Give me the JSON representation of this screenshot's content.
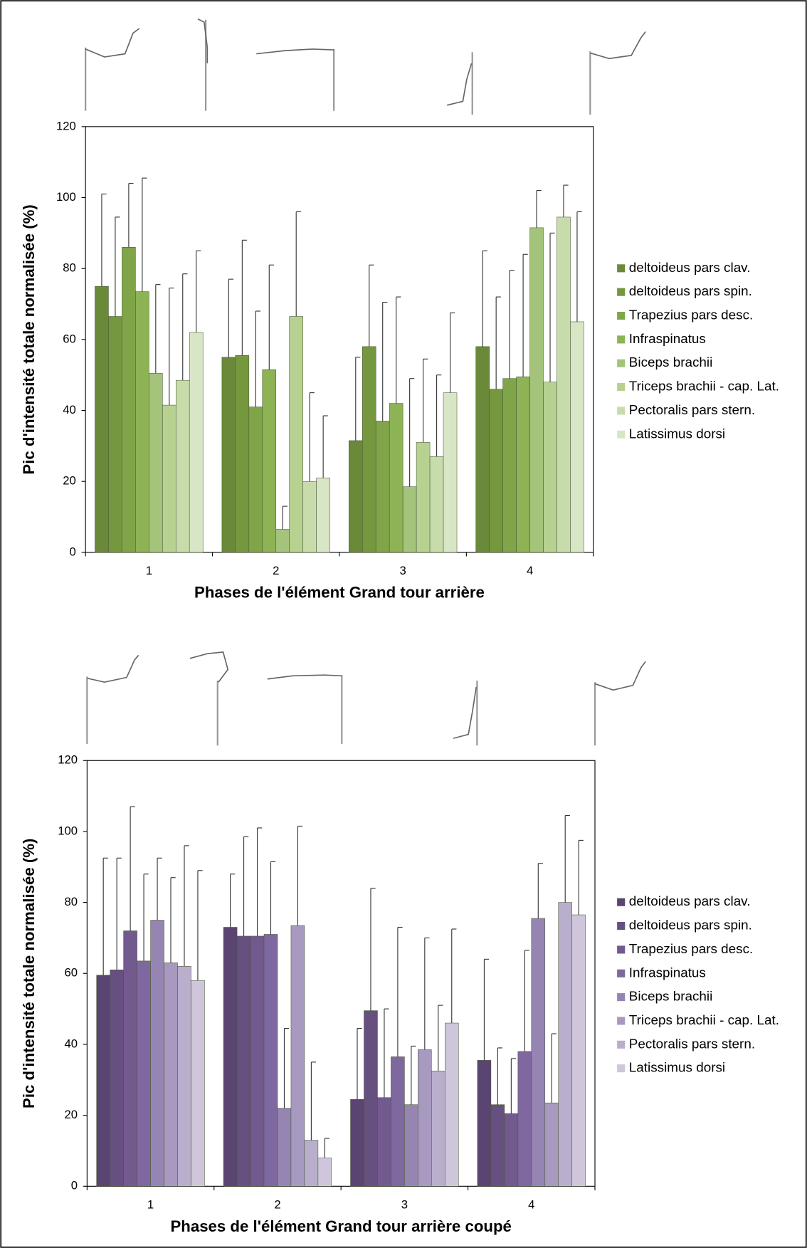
{
  "chart_data": [
    {
      "type": "bar",
      "x_label": "Phases de l'élément Grand tour arrière",
      "y_label": "Pic d'intensité totale normalisée (%)",
      "categories": [
        "1",
        "2",
        "3",
        "4"
      ],
      "ylim": [
        0,
        120
      ],
      "yticks": [
        0,
        20,
        40,
        60,
        80,
        100,
        120
      ],
      "series": [
        {
          "name": "deltoideus pars clav.",
          "color": "#6a8a3a",
          "values": [
            75,
            55,
            31.5,
            58
          ],
          "errors": [
            26,
            22,
            23.5,
            27
          ]
        },
        {
          "name": "deltoideus pars spin.",
          "color": "#75983f",
          "values": [
            66.5,
            55.5,
            58,
            46
          ],
          "errors": [
            28,
            32.5,
            23,
            26
          ]
        },
        {
          "name": "Trapezius pars  desc.",
          "color": "#80a548",
          "values": [
            86,
            41,
            37,
            49
          ],
          "errors": [
            18,
            27,
            33.5,
            30.5
          ]
        },
        {
          "name": "Infraspinatus",
          "color": "#8db354",
          "values": [
            73.5,
            51.5,
            42,
            49.5
          ],
          "errors": [
            32,
            29.5,
            30,
            34.5
          ]
        },
        {
          "name": "Biceps brachii",
          "color": "#a3c47a",
          "values": [
            50.5,
            6.5,
            18.5,
            91.5
          ],
          "errors": [
            25,
            6.5,
            30.5,
            10.5
          ]
        },
        {
          "name": "Triceps brachii - cap. Lat.",
          "color": "#b6d190",
          "values": [
            41.5,
            66.5,
            31,
            48
          ],
          "errors": [
            33,
            29.5,
            23.5,
            42
          ]
        },
        {
          "name": "Pectoralis pars stern.",
          "color": "#c8dcab",
          "values": [
            48.5,
            20,
            27,
            94.5
          ],
          "errors": [
            30,
            25,
            23,
            9
          ]
        },
        {
          "name": "Latissimus dorsi",
          "color": "#d9e6c6",
          "values": [
            62,
            21,
            45,
            65
          ],
          "errors": [
            23,
            17.5,
            22.5,
            31
          ]
        }
      ]
    },
    {
      "type": "bar",
      "x_label": "Phases de l'élément Grand tour arrière coupé",
      "y_label": "Pic d'intensité totale normalisée (%)",
      "categories": [
        "1",
        "2",
        "3",
        "4"
      ],
      "ylim": [
        0,
        120
      ],
      "yticks": [
        0,
        20,
        40,
        60,
        80,
        100,
        120
      ],
      "series": [
        {
          "name": "deltoideus pars clav.",
          "color": "#5a4472",
          "values": [
            59.5,
            73,
            24.5,
            35.5
          ],
          "errors": [
            33,
            15,
            20,
            28.5
          ]
        },
        {
          "name": "deltoideus pars spin.",
          "color": "#66507f",
          "values": [
            61,
            70.5,
            49.5,
            23
          ],
          "errors": [
            31.5,
            28,
            34.5,
            16
          ]
        },
        {
          "name": "Trapezius pars desc.",
          "color": "#72598e",
          "values": [
            72,
            70.5,
            25,
            20.5
          ],
          "errors": [
            35,
            30.5,
            25,
            15.5
          ]
        },
        {
          "name": "Infraspinatus",
          "color": "#7f67a0",
          "values": [
            63.5,
            71,
            36.5,
            38
          ],
          "errors": [
            24.5,
            20.5,
            36.5,
            28.5
          ]
        },
        {
          "name": "Biceps brachii",
          "color": "#9685b3",
          "values": [
            75,
            22,
            23,
            75.5
          ],
          "errors": [
            17.5,
            22.5,
            16.5,
            15.5
          ]
        },
        {
          "name": "Triceps brachii - cap. Lat.",
          "color": "#a899c0",
          "values": [
            63,
            73.5,
            38.5,
            23.5
          ],
          "errors": [
            24,
            28,
            31.5,
            19.5
          ]
        },
        {
          "name": "Pectoralis pars stern.",
          "color": "#baaecd",
          "values": [
            62,
            13,
            32.5,
            80
          ],
          "errors": [
            34,
            22,
            18.5,
            24.5
          ]
        },
        {
          "name": "Latissimus dorsi",
          "color": "#cfc6dc",
          "values": [
            58,
            8,
            46,
            76.5
          ],
          "errors": [
            31,
            5.5,
            26.5,
            21
          ]
        }
      ]
    }
  ]
}
